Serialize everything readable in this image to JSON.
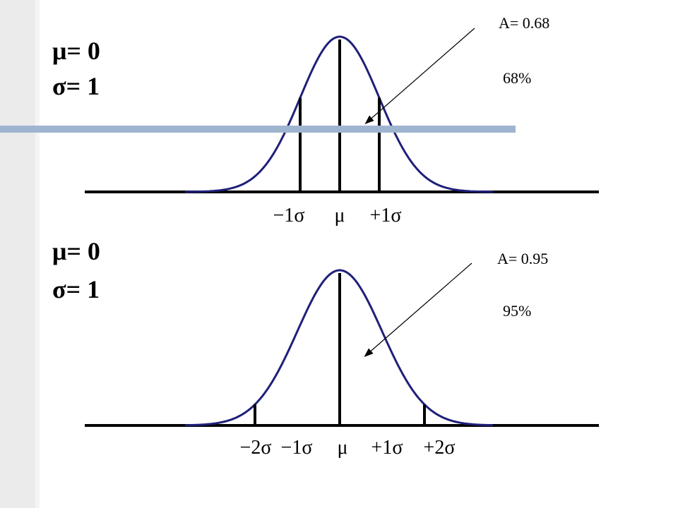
{
  "colors": {
    "curve": "#1f1f7a",
    "axis": "#000000",
    "accent_bar": "#9fb4ce",
    "band": "#ebebeb"
  },
  "panels": [
    {
      "mu_label": "μ= 0",
      "sigma_label": "σ= 1",
      "area_label": "A= 0.68",
      "percent_label": "68%",
      "tick_labels": [
        "−1σ",
        "μ",
        "+1σ"
      ],
      "tick_positions_sigma": [
        -1,
        0,
        1
      ],
      "vertical_lines_sigma": [
        -1,
        0,
        1
      ],
      "vertical_lines_reach_curve": true
    },
    {
      "mu_label": "μ= 0",
      "sigma_label": "σ= 1",
      "area_label": "A= 0.95",
      "percent_label": "95%",
      "tick_labels": [
        "−2σ",
        "−1σ",
        "μ",
        "+1σ",
        "+2σ"
      ],
      "tick_positions_sigma": [
        -2,
        -1,
        0,
        1,
        2
      ],
      "vertical_lines_sigma": [
        -2,
        0,
        2
      ],
      "vertical_lines_reach_curve": true
    }
  ]
}
